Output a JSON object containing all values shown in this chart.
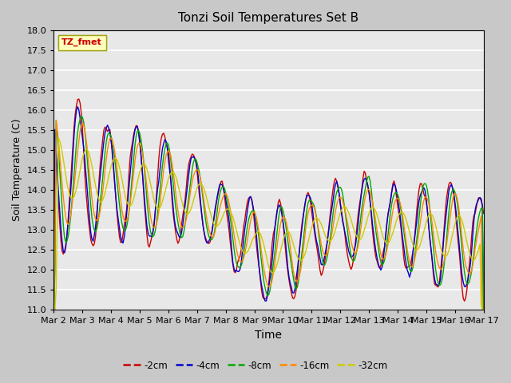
{
  "title": "Tonzi Soil Temperatures Set B",
  "xlabel": "Time",
  "ylabel": "Soil Temperature (C)",
  "ylim": [
    11.0,
    18.0
  ],
  "yticks": [
    11.0,
    11.5,
    12.0,
    12.5,
    13.0,
    13.5,
    14.0,
    14.5,
    15.0,
    15.5,
    16.0,
    16.5,
    17.0,
    17.5,
    18.0
  ],
  "colors": {
    "-2cm": "#cc0000",
    "-4cm": "#0000cc",
    "-8cm": "#00aa00",
    "-16cm": "#ff8800",
    "-32cm": "#cccc00"
  },
  "legend_label": "TZ_fmet",
  "legend_bg": "#ffffbb",
  "legend_border": "#999900",
  "fig_bg": "#c8c8c8",
  "plot_bg": "#e8e8e8",
  "date_labels": [
    "Mar 2",
    "Mar 3",
    "Mar 4",
    "Mar 5",
    "Mar 6",
    "Mar 7",
    "Mar 8",
    "Mar 9",
    "Mar 10",
    "Mar 11",
    "Mar 12",
    "Mar 13",
    "Mar 14",
    "Mar 15",
    "Mar 16",
    "Mar 17"
  ],
  "date_ticks": [
    0,
    24,
    48,
    72,
    96,
    120,
    144,
    168,
    192,
    216,
    240,
    264,
    288,
    312,
    336,
    360
  ],
  "n_points": 361
}
